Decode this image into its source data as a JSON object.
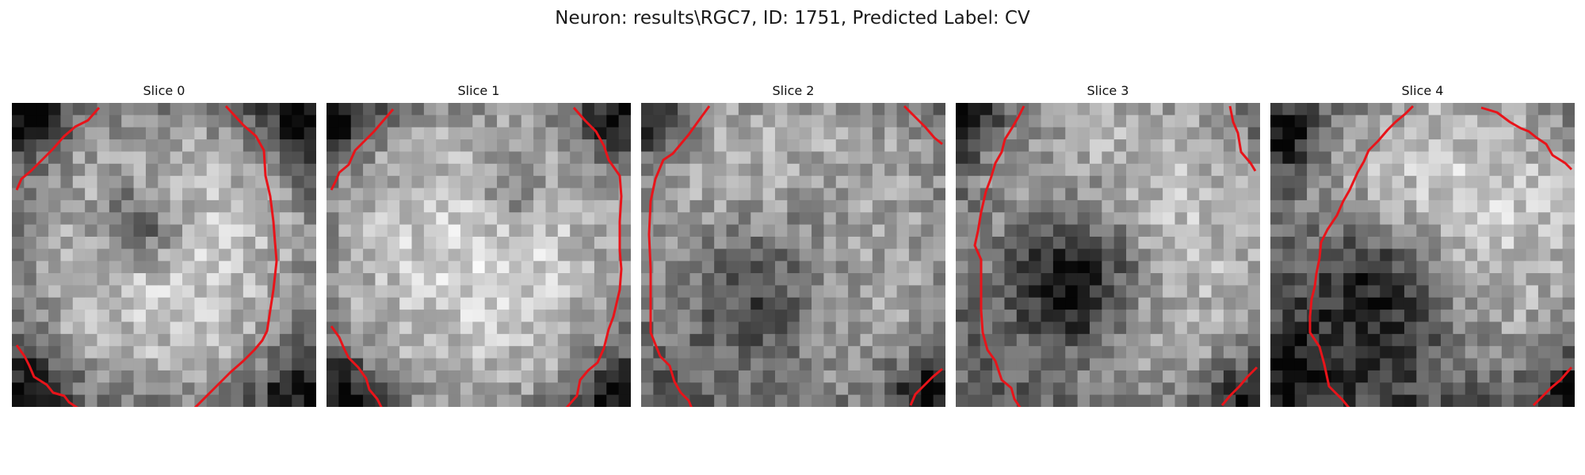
{
  "figure": {
    "title": "Neuron: results\\RGC7, ID: 1751, Predicted Label: CV"
  },
  "panels": [
    {
      "title": "Slice 0"
    },
    {
      "title": "Slice 1"
    },
    {
      "title": "Slice 2"
    },
    {
      "title": "Slice 3"
    },
    {
      "title": "Slice 4"
    }
  ],
  "style": {
    "contour_color": "#e8141a",
    "colormap": "gray"
  }
}
